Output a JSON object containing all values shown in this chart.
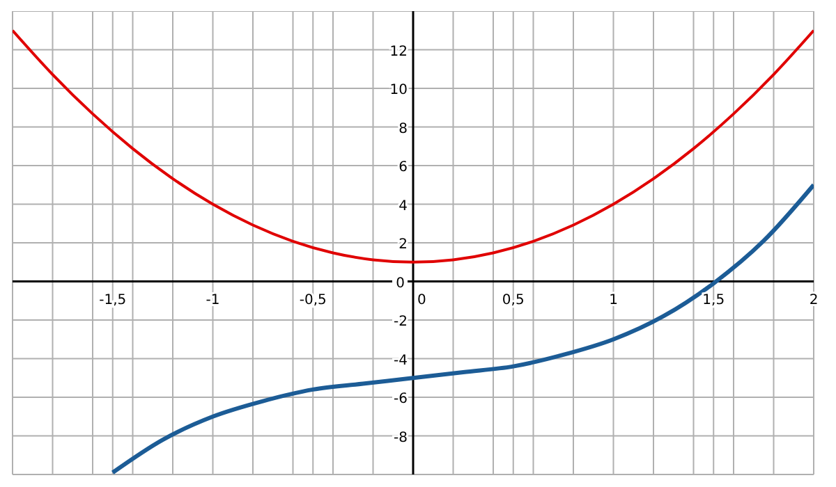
{
  "chart_data": {
    "type": "line",
    "xlim": [
      -2,
      2
    ],
    "ylim": [
      -10,
      14
    ],
    "xticks": [
      {
        "value": -2,
        "label": null
      },
      {
        "value": -1.8,
        "label": null
      },
      {
        "value": -1.6,
        "label": null
      },
      {
        "value": -1.5,
        "label": "-1,5"
      },
      {
        "value": -1.4,
        "label": null
      },
      {
        "value": -1.2,
        "label": null
      },
      -1,
      {
        "value": -0.8,
        "label": null
      },
      {
        "value": -0.6,
        "label": null
      },
      {
        "value": -0.5,
        "label": "-0,5"
      },
      {
        "value": -0.4,
        "label": null
      },
      {
        "value": -0.2,
        "label": null
      },
      0,
      {
        "value": 0.2,
        "label": null
      },
      {
        "value": 0.4,
        "label": null
      },
      {
        "value": 0.5,
        "label": "0,5"
      },
      {
        "value": 0.6,
        "label": null
      },
      {
        "value": 0.8,
        "label": null
      },
      1,
      {
        "value": 1.2,
        "label": null
      },
      {
        "value": 1.4,
        "label": null
      },
      {
        "value": 1.5,
        "label": "1,5"
      },
      {
        "value": 1.6,
        "label": null
      },
      {
        "value": 1.8,
        "label": null
      },
      2
    ],
    "yticks": [
      {
        "value": -10,
        "label": null
      },
      -8,
      -6,
      -4,
      -2,
      0,
      2,
      4,
      6,
      8,
      10,
      12,
      {
        "value": 14,
        "label": null
      }
    ],
    "grid": true,
    "marker": "none",
    "line_style": "solid",
    "series": [
      {
        "color": "#e00000",
        "x": [
          -2,
          -1.8,
          -1.6,
          -1.4,
          -1.2,
          -1,
          -0.8,
          -0.6,
          -0.4,
          -0.2,
          0,
          0.2,
          0.4,
          0.6,
          0.8,
          1,
          1.2,
          1.4,
          1.6,
          1.8,
          2
        ],
        "values": [
          13,
          10.72,
          8.68,
          6.88,
          5.32,
          4,
          2.92,
          2.08,
          1.48,
          1.12,
          1,
          1.12,
          1.48,
          2.08,
          2.92,
          4,
          5.32,
          6.88,
          8.68,
          10.72,
          13
        ]
      },
      {
        "color": "#1c5c96",
        "x": [
          -1.5,
          -1.25,
          -1,
          -0.75,
          -0.5,
          -0.25,
          0,
          0.25,
          0.5,
          0.75,
          1,
          1.25,
          1.5,
          1.75,
          2
        ],
        "values": [
          -9.9,
          -8.2,
          -7,
          -6.2,
          -5.6,
          -5.3,
          -5,
          -4.7,
          -4.4,
          -3.8,
          -3,
          -1.8,
          -0.1,
          2.1,
          5
        ]
      }
    ]
  }
}
